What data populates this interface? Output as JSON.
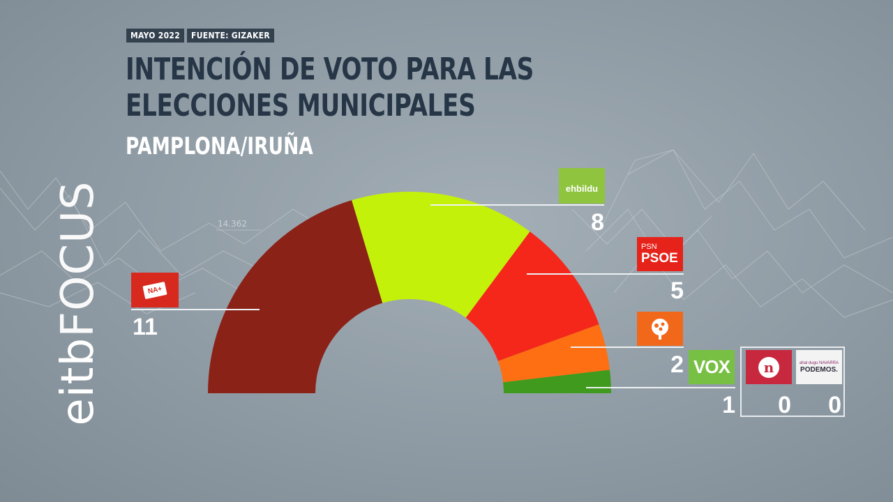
{
  "header": {
    "date": "MAYO 2022",
    "source": "FUENTE: GIZAKER",
    "title": "INTENCIÓN DE VOTO PARA LAS ELECCIONES MUNICIPALES",
    "subtitle": "PAMPLONA/IRUÑA"
  },
  "brand": {
    "part1": "eitb",
    "part2": "FOCUS"
  },
  "background": {
    "number_label": "14.362"
  },
  "colors": {
    "background": "#929ea7",
    "title": "#263646",
    "meta_bg": "#33414f"
  },
  "chart_data": {
    "type": "pie",
    "variant": "hemicycle",
    "unit": "seats",
    "series": [
      {
        "name": "NA+",
        "value": 11,
        "color": "#8b2218",
        "logo_icon": "na-plus-logo",
        "logo_text": "NA+",
        "logo_bg": "#d8291f"
      },
      {
        "name": "ehbildu",
        "value": 8,
        "color": "#c4f10a",
        "logo_icon": "ehbildu-logo",
        "logo_text": "ehbildu",
        "logo_bg": "#8fc43e"
      },
      {
        "name": "PSN PSOE",
        "value": 5,
        "color": "#f4271a",
        "logo_icon": "psn-psoe-logo",
        "logo_text_top": "PSN",
        "logo_text": "PSOE",
        "logo_bg": "#e5231a"
      },
      {
        "name": "Geroa Bai",
        "value": 2,
        "color": "#fd6f12",
        "logo_icon": "geroa-bai-tree-logo",
        "logo_text": "",
        "logo_bg": "#f2681a"
      },
      {
        "name": "VOX",
        "value": 1,
        "color": "#3f9a1d",
        "logo_icon": "vox-logo",
        "logo_text": "VOX",
        "logo_bg": "#77c043"
      }
    ],
    "others": [
      {
        "name": "n",
        "value": 0,
        "logo_icon": "n-logo",
        "logo_text": "n",
        "logo_bg": "#c8283e"
      },
      {
        "name": "PODEMOS",
        "value": 0,
        "logo_icon": "podemos-logo",
        "logo_text_top": "ahal dugu NAVARRA",
        "logo_text": "PODEMOS.",
        "logo_bg": "#f3f3f3"
      }
    ]
  }
}
